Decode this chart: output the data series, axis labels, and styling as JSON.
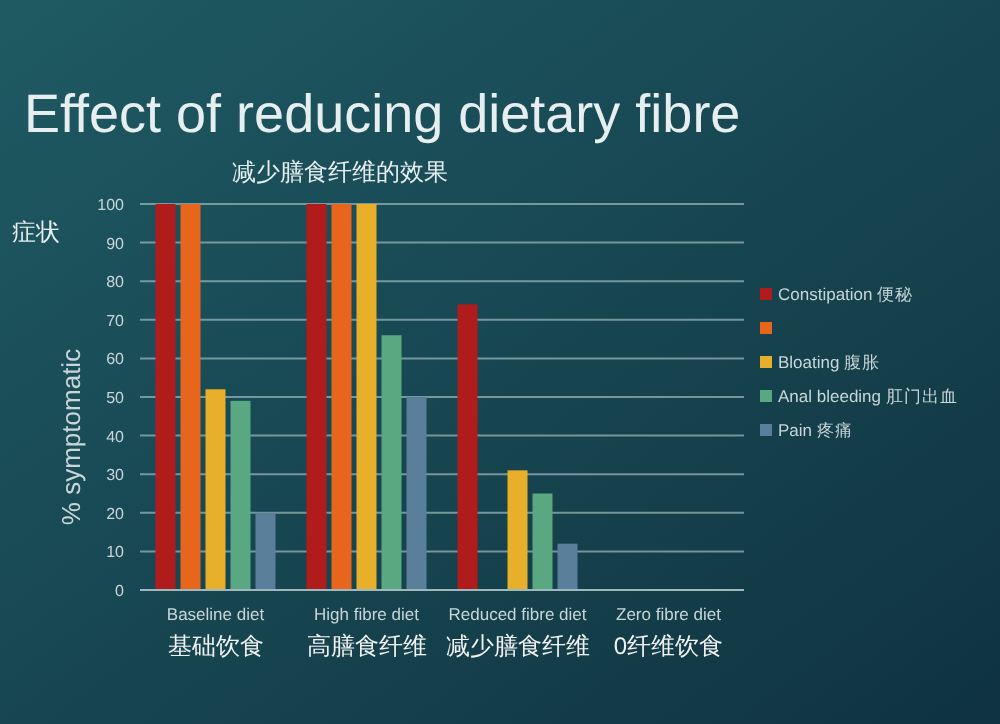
{
  "chart_data": {
    "type": "bar",
    "title": "Effect of reducing dietary fibre",
    "subtitle": "减少膳食纤维的效果",
    "ylabel": "% symptomatic",
    "categories": [
      "Baseline diet",
      "High fibre diet",
      "Reduced fibre diet",
      "Zero fibre diet"
    ],
    "series": [
      {
        "name": "Constipation 便秘",
        "color": "#b01c1c",
        "values": [
          100,
          100,
          74,
          0
        ]
      },
      {
        "color": "#e8661c",
        "values": [
          100,
          100,
          null,
          0
        ]
      },
      {
        "name": "Bloating 腹胀",
        "color": "#e8b02a",
        "values": [
          52,
          100,
          31,
          0
        ]
      },
      {
        "name": "Anal bleeding 肛门出血",
        "color": "#5aa882",
        "values": [
          49,
          66,
          25,
          0
        ]
      },
      {
        "name": "Pain 疼痛",
        "color": "#5a7f9a",
        "values": [
          20,
          50,
          12,
          0
        ]
      }
    ],
    "ylim": [
      0,
      100
    ],
    "yticks": [
      0,
      10,
      20,
      30,
      40,
      50,
      60,
      70,
      80,
      90,
      100
    ],
    "grid": "y",
    "legend": "right",
    "annotations": [
      "症状",
      "基础饮食",
      "高膳食纤维",
      "减少膳食纤维",
      "0纤维饮食"
    ]
  }
}
